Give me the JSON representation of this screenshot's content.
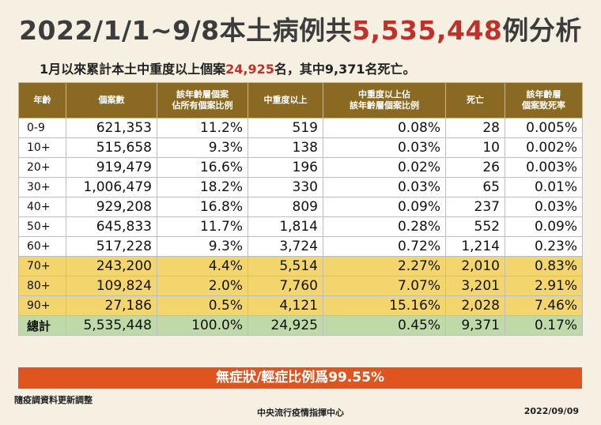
{
  "header": {
    "title_prefix": "2022/1/1~9/8本土病例共",
    "title_number": "5,535,448",
    "title_suffix": "例分析",
    "subtitle_prefix": "1月以來累計本土中重度以上個案",
    "subtitle_number": "24,925",
    "subtitle_suffix": "名，其中9,371名死亡。"
  },
  "table": {
    "columns": [
      "年齡",
      "個案數",
      "該年齡層個案\n佔所有個案比例",
      "中重度以上",
      "中重度以上佔\n該年齡層個案比例",
      "死亡",
      "該年齡層\n個案致死率"
    ],
    "rows": [
      {
        "age": "0-9",
        "cases": "621,353",
        "share": "11.2%",
        "severe": "519",
        "severe_rate": "0.08%",
        "deaths": "28",
        "cfr": "0.005%",
        "group": "normal"
      },
      {
        "age": "10+",
        "cases": "515,658",
        "share": "9.3%",
        "severe": "138",
        "severe_rate": "0.03%",
        "deaths": "10",
        "cfr": "0.002%",
        "group": "normal"
      },
      {
        "age": "20+",
        "cases": "919,479",
        "share": "16.6%",
        "severe": "196",
        "severe_rate": "0.02%",
        "deaths": "26",
        "cfr": "0.003%",
        "group": "normal"
      },
      {
        "age": "30+",
        "cases": "1,006,479",
        "share": "18.2%",
        "severe": "330",
        "severe_rate": "0.03%",
        "deaths": "65",
        "cfr": "0.01%",
        "group": "normal"
      },
      {
        "age": "40+",
        "cases": "929,208",
        "share": "16.8%",
        "severe": "809",
        "severe_rate": "0.09%",
        "deaths": "237",
        "cfr": "0.03%",
        "group": "normal"
      },
      {
        "age": "50+",
        "cases": "645,833",
        "share": "11.7%",
        "severe": "1,814",
        "severe_rate": "0.28%",
        "deaths": "552",
        "cfr": "0.09%",
        "group": "normal"
      },
      {
        "age": "60+",
        "cases": "517,228",
        "share": "9.3%",
        "severe": "3,724",
        "severe_rate": "0.72%",
        "deaths": "1,214",
        "cfr": "0.23%",
        "group": "normal"
      },
      {
        "age": "70+",
        "cases": "243,200",
        "share": "4.4%",
        "severe": "5,514",
        "severe_rate": "2.27%",
        "deaths": "2,010",
        "cfr": "0.83%",
        "group": "elder"
      },
      {
        "age": "80+",
        "cases": "109,824",
        "share": "2.0%",
        "severe": "7,760",
        "severe_rate": "7.07%",
        "deaths": "3,201",
        "cfr": "2.91%",
        "group": "elder"
      },
      {
        "age": "90+",
        "cases": "27,186",
        "share": "0.5%",
        "severe": "4,121",
        "severe_rate": "15.16%",
        "deaths": "2,028",
        "cfr": "7.46%",
        "group": "elder"
      },
      {
        "age": "總計",
        "cases": "5,535,448",
        "share": "100.0%",
        "severe": "24,925",
        "severe_rate": "0.45%",
        "deaths": "9,371",
        "cfr": "0.17%",
        "group": "total"
      }
    ]
  },
  "banner": "無症狀/輕症比例爲99.55%",
  "footer": {
    "note": "隨疫調資料更新調整",
    "center": "中央流行疫情指揮中心",
    "date": "2022/09/09"
  },
  "colors": {
    "header_bg": "#8a6a22",
    "elder_row": "#f3d56e",
    "total_row": "#bfd9a8",
    "banner_bg": "#e0541f",
    "highlight_text": "#c0312a"
  }
}
